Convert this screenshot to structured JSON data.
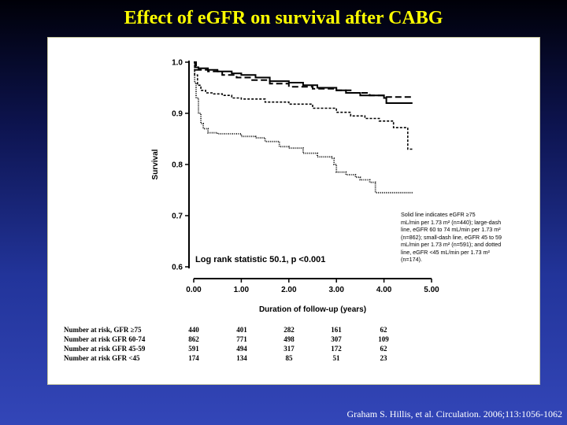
{
  "slide": {
    "title": "Effect of eGFR on survival after CABG",
    "citation": "Graham S. Hillis, et al. Circulation. 2006;113:1056-1062"
  },
  "colors": {
    "title": "#ffff00",
    "panel": "#ffffff",
    "line": "#000000"
  },
  "chart_data": {
    "type": "line",
    "title": "",
    "xlabel": "Duration of follow-up (years)",
    "ylabel": "Survival",
    "xlim": [
      0,
      5
    ],
    "ylim": [
      0.6,
      1.0
    ],
    "x_ticks": [
      "0.00",
      "1.00",
      "2.00",
      "3.00",
      "4.00",
      "5.00"
    ],
    "y_ticks": [
      "1.0",
      "0.9",
      "0.8",
      "0.7",
      "0.6"
    ],
    "grid": false,
    "annotation": "Log rank statistic 50.1, p <0.001",
    "legend_note": [
      "Solid line indicates eGFR ≥75",
      "mL/min per 1.73 m² (n=440); large-dash",
      "line, eGFR 60 to 74 mL/min per 1.73 m²",
      "(n=862); small-dash line, eGFR 45 to 59",
      "mL/min per 1.73 m² (n=591); and dotted",
      "line, eGFR <45 mL/min per 1.73 m²",
      "(n=174)."
    ],
    "series": [
      {
        "style": "solid",
        "points": [
          [
            0,
            1.0
          ],
          [
            0.03,
            0.99
          ],
          [
            0.1,
            0.988
          ],
          [
            0.3,
            0.985
          ],
          [
            0.5,
            0.982
          ],
          [
            0.8,
            0.978
          ],
          [
            1.0,
            0.975
          ],
          [
            1.3,
            0.97
          ],
          [
            1.6,
            0.963
          ],
          [
            2.0,
            0.96
          ],
          [
            2.3,
            0.955
          ],
          [
            2.6,
            0.95
          ],
          [
            3.0,
            0.945
          ],
          [
            3.2,
            0.94
          ],
          [
            3.5,
            0.935
          ],
          [
            3.8,
            0.935
          ],
          [
            4.0,
            0.93
          ],
          [
            4.05,
            0.92
          ],
          [
            4.6,
            0.92
          ]
        ]
      },
      {
        "style": "large-dash",
        "points": [
          [
            0,
            1.0
          ],
          [
            0.05,
            0.985
          ],
          [
            0.3,
            0.982
          ],
          [
            0.6,
            0.975
          ],
          [
            0.9,
            0.97
          ],
          [
            1.2,
            0.965
          ],
          [
            1.6,
            0.958
          ],
          [
            2.0,
            0.952
          ],
          [
            2.5,
            0.948
          ],
          [
            3.0,
            0.945
          ],
          [
            3.3,
            0.94
          ],
          [
            3.7,
            0.935
          ],
          [
            4.0,
            0.932
          ],
          [
            4.6,
            0.932
          ]
        ]
      },
      {
        "style": "small-dash",
        "points": [
          [
            0,
            1.0
          ],
          [
            0.02,
            0.975
          ],
          [
            0.08,
            0.955
          ],
          [
            0.15,
            0.945
          ],
          [
            0.25,
            0.94
          ],
          [
            0.4,
            0.938
          ],
          [
            0.6,
            0.935
          ],
          [
            0.8,
            0.93
          ],
          [
            1.0,
            0.928
          ],
          [
            1.5,
            0.922
          ],
          [
            2.0,
            0.918
          ],
          [
            2.5,
            0.91
          ],
          [
            3.0,
            0.902
          ],
          [
            3.3,
            0.895
          ],
          [
            3.6,
            0.89
          ],
          [
            3.9,
            0.885
          ],
          [
            4.2,
            0.872
          ],
          [
            4.45,
            0.872
          ],
          [
            4.5,
            0.83
          ],
          [
            4.6,
            0.83
          ]
        ]
      },
      {
        "style": "dotted",
        "points": [
          [
            0,
            1.0
          ],
          [
            0.02,
            0.96
          ],
          [
            0.05,
            0.93
          ],
          [
            0.1,
            0.9
          ],
          [
            0.15,
            0.88
          ],
          [
            0.2,
            0.87
          ],
          [
            0.3,
            0.862
          ],
          [
            0.5,
            0.86
          ],
          [
            0.7,
            0.86
          ],
          [
            1.0,
            0.855
          ],
          [
            1.3,
            0.852
          ],
          [
            1.5,
            0.845
          ],
          [
            1.8,
            0.835
          ],
          [
            2.0,
            0.832
          ],
          [
            2.3,
            0.822
          ],
          [
            2.6,
            0.815
          ],
          [
            2.9,
            0.812
          ],
          [
            2.95,
            0.8
          ],
          [
            3.0,
            0.785
          ],
          [
            3.2,
            0.78
          ],
          [
            3.4,
            0.775
          ],
          [
            3.5,
            0.77
          ],
          [
            3.7,
            0.765
          ],
          [
            3.8,
            0.765
          ],
          [
            3.82,
            0.745
          ],
          [
            4.6,
            0.745
          ]
        ]
      }
    ],
    "risk_table": {
      "rows": [
        {
          "label": "Number at risk, GFR ≥75",
          "values": [
            "440",
            "401",
            "282",
            "161",
            "62"
          ]
        },
        {
          "label": "Number at risk GFR 60-74",
          "values": [
            "862",
            "771",
            "498",
            "307",
            "109"
          ]
        },
        {
          "label": "Number at risk GFR 45-59",
          "values": [
            "591",
            "494",
            "317",
            "172",
            "62"
          ]
        },
        {
          "label": "Number at risk GFR <45",
          "values": [
            "174",
            "134",
            "85",
            "51",
            "23"
          ]
        }
      ]
    }
  }
}
